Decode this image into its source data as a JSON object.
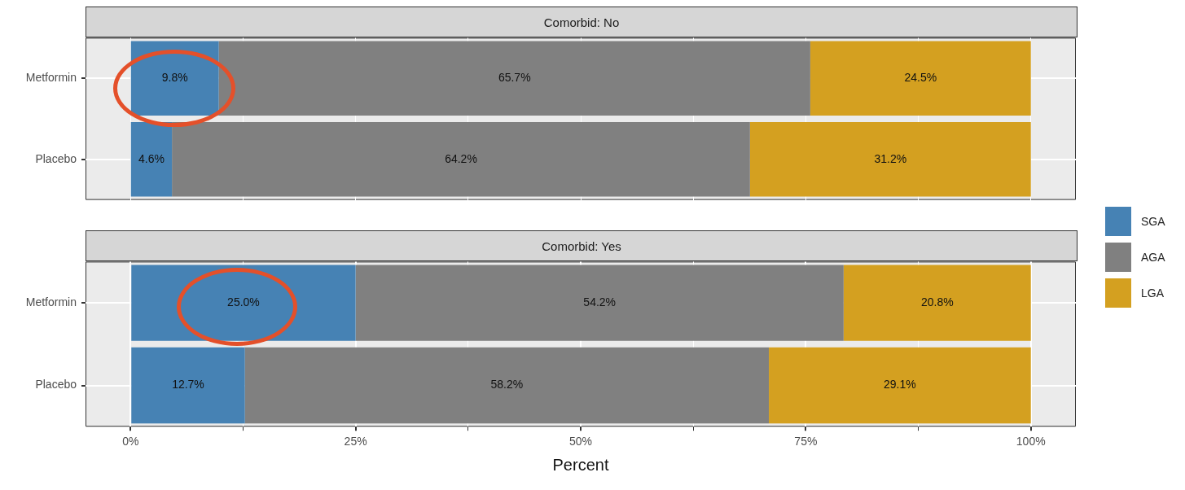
{
  "chart_data": [
    {
      "type": "bar",
      "orientation": "horizontal",
      "stacked": true,
      "title": "Comorbid: No",
      "categories": [
        "Metformin",
        "Placebo"
      ],
      "series": [
        {
          "name": "SGA",
          "color": "#4682b4",
          "values": [
            9.8,
            4.6
          ],
          "value_labels": [
            "9.8%",
            "4.6%"
          ]
        },
        {
          "name": "AGA",
          "color": "#808080",
          "values": [
            65.7,
            64.2
          ],
          "value_labels": [
            "65.7%",
            "64.2%"
          ]
        },
        {
          "name": "LGA",
          "color": "#d4a020",
          "values": [
            24.5,
            31.2
          ],
          "value_labels": [
            "24.5%",
            "31.2%"
          ]
        }
      ],
      "xlim": [
        -5,
        105
      ],
      "xticks": [
        {
          "value": 0,
          "label": null
        },
        {
          "value": 12.5,
          "label": null
        },
        {
          "value": 25,
          "label": null
        },
        {
          "value": 37.5,
          "label": null
        },
        {
          "value": 50,
          "label": null
        },
        {
          "value": 62.5,
          "label": null
        },
        {
          "value": 75,
          "label": null
        },
        {
          "value": 87.5,
          "label": null
        },
        {
          "value": 100,
          "label": null
        }
      ],
      "tick_labels": "y",
      "grid": true,
      "legend": "right"
    },
    {
      "type": "bar",
      "orientation": "horizontal",
      "stacked": true,
      "title": "Comorbid: Yes",
      "xlabel": "Percent",
      "categories": [
        "Metformin",
        "Placebo"
      ],
      "series": [
        {
          "color": "#4682b4",
          "values": [
            25.0,
            12.7
          ],
          "value_labels": [
            "25.0%",
            "12.7%"
          ]
        },
        {
          "color": "#808080",
          "values": [
            54.2,
            58.2
          ],
          "value_labels": [
            "54.2%",
            "58.2%"
          ]
        },
        {
          "color": "#d4a020",
          "values": [
            20.8,
            29.1
          ],
          "value_labels": [
            "20.8%",
            "29.1%"
          ]
        }
      ],
      "xlim": [
        -5,
        105
      ],
      "xticks": [
        {
          "value": 0,
          "label": "0%"
        },
        {
          "value": 12.5,
          "label": null
        },
        {
          "value": 25,
          "label": "25%"
        },
        {
          "value": 37.5,
          "label": null
        },
        {
          "value": 50,
          "label": "50%"
        },
        {
          "value": 62.5,
          "label": null
        },
        {
          "value": 75,
          "label": "75%"
        },
        {
          "value": 87.5,
          "label": null
        },
        {
          "value": 100,
          "label": "100%"
        }
      ],
      "grid": true
    }
  ]
}
